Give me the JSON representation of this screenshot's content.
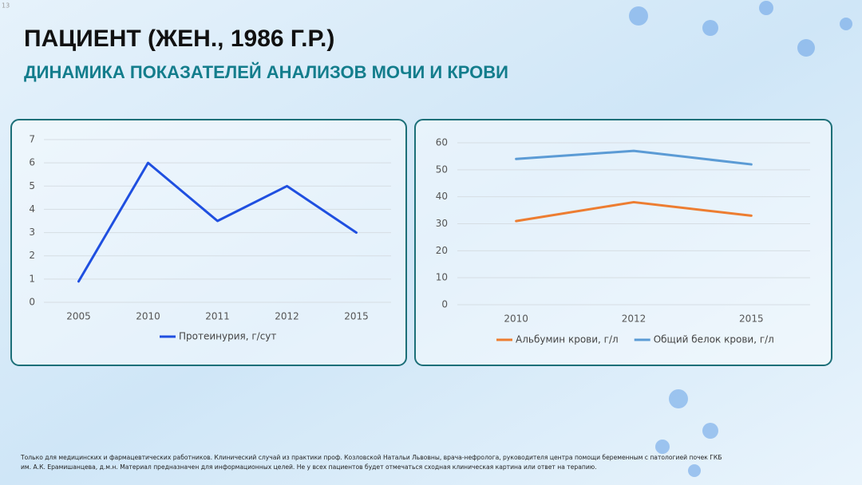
{
  "page_number": "13",
  "title": "ПАЦИЕНТ (ЖЕН., 1986 Г.Р.)",
  "subtitle": "ДИНАМИКА ПОКАЗАТЕЛЕЙ АНАЛИЗОВ МОЧИ И КРОВИ",
  "footnote": [
    "Только для медицинских и фармацевтических работников. Клинический случай из практики проф. Козловской Натальи Львовны, врача-нефролога, руководителя центра помощи беременным с патологией почек ГКБ",
    "им. А.К. Ерамишанцева, д.м.н. Материал предназначен для информационных целей. Не у всех пациентов будет отмечаться сходная клиническая картина или ответ на терапию."
  ],
  "chart_data": [
    {
      "type": "line",
      "categories": [
        "2005",
        "2010",
        "2011",
        "2012",
        "2015"
      ],
      "series": [
        {
          "name": "Протеинурия, г/сут",
          "color": "#1f4fe0",
          "values": [
            0.9,
            6,
            3.5,
            5,
            3
          ]
        }
      ],
      "ylim": [
        0,
        7
      ],
      "yticks": [
        0,
        1,
        2,
        3,
        4,
        5,
        6,
        7
      ],
      "grid": true,
      "legend": "bottom"
    },
    {
      "type": "line",
      "categories": [
        "2010",
        "2012",
        "2015"
      ],
      "series": [
        {
          "name": "Альбумин крови, г/л",
          "color": "#ed7d31",
          "values": [
            31,
            38,
            33
          ]
        },
        {
          "name": "Общий белок крови, г/л",
          "color": "#5b9bd5",
          "values": [
            54,
            57,
            52
          ]
        }
      ],
      "ylim": [
        0,
        60
      ],
      "yticks": [
        0,
        10,
        20,
        30,
        40,
        50,
        60
      ],
      "grid": true,
      "legend": "bottom"
    }
  ]
}
